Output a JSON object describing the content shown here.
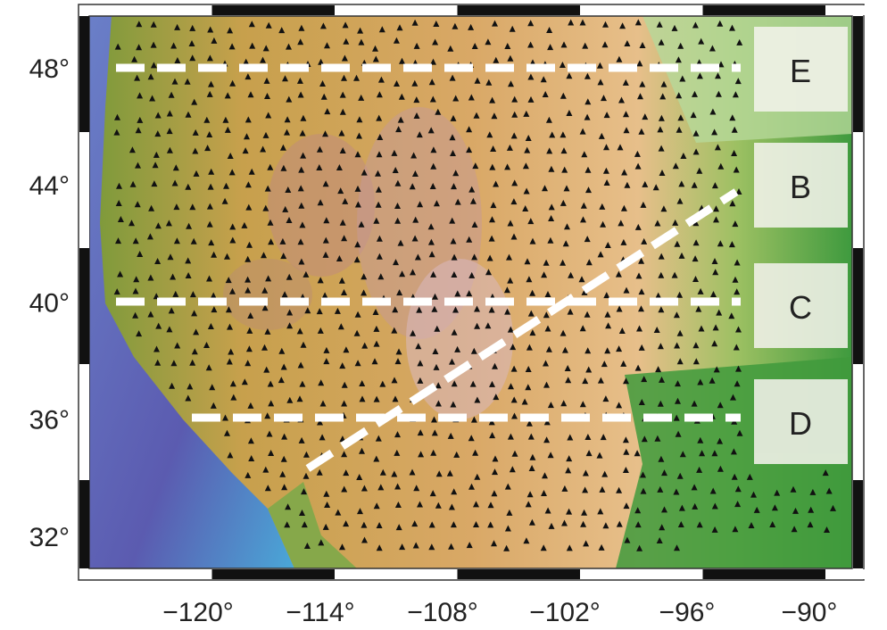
{
  "x_axis": {
    "ticks": [
      {
        "value": -120,
        "label": "−120°"
      },
      {
        "value": -114,
        "label": "−114°"
      },
      {
        "value": -108,
        "label": "−108°"
      },
      {
        "value": -102,
        "label": "−102°"
      },
      {
        "value": -96,
        "label": "−96°"
      },
      {
        "value": -90,
        "label": "−90°"
      }
    ]
  },
  "y_axis": {
    "ticks": [
      {
        "value": 48,
        "label": "48°"
      },
      {
        "value": 44,
        "label": "44°"
      },
      {
        "value": 40,
        "label": "40°"
      },
      {
        "value": 36,
        "label": "36°"
      },
      {
        "value": 32,
        "label": "32°"
      }
    ]
  },
  "profiles": [
    {
      "label": "E"
    },
    {
      "label": "B"
    },
    {
      "label": "C"
    },
    {
      "label": "D"
    }
  ]
}
